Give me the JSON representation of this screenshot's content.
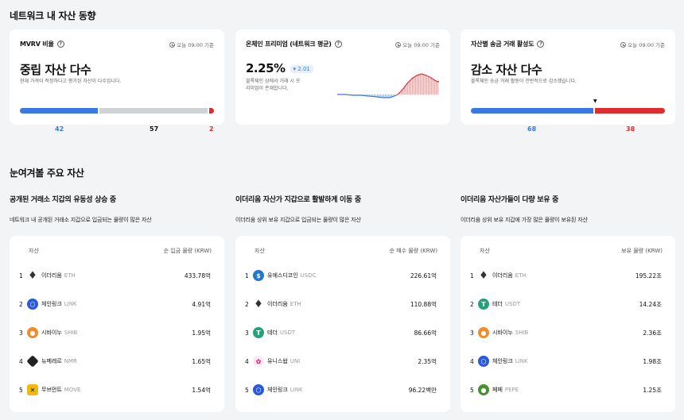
{
  "section1_title": "네트워크 내 자산 동향",
  "section2_title": "눈여겨볼 주요 자산",
  "metrics": {
    "mvrv": {
      "title": "MVRV 비율",
      "time": "오늘 09:00 기준",
      "value": "중립 자산 다수",
      "desc": "현재 가격이 적정하다고 평가된 자산이 다수입니다.",
      "bar_values": [
        "42",
        "57",
        "2"
      ]
    },
    "premium": {
      "title": "온체인 프리미엄 (네트워크 평균)",
      "time": "오늘 09:00 기준",
      "value": "2.25%",
      "delta": "▾ 2.01",
      "desc_line1": "블록체인 상에서 거래 시 프",
      "desc_line2": "리미엄이 존재합니다."
    },
    "transfer": {
      "title": "자산별 송금 거래 활성도",
      "time": "오늘 09:00 기준",
      "value": "감소 자산 다수",
      "desc": "블록체인 송금 거래 활동이 전반적으로 감소했습니다.",
      "bar_values": [
        "68",
        "38"
      ]
    }
  },
  "colors": {
    "blue": "#3a78e4",
    "grey": "#cfd2d6",
    "red": "#e02c2c"
  },
  "lists": [
    {
      "title": "공개된 거래소 지갑의 유동성 상승 중",
      "desc": "네트워크 내 공개된 거래소 지갑으로 입금되는 물량이 많은 자산",
      "col_asset": "자산",
      "col_value": "순 입금 물량 (KRW)",
      "rows": [
        {
          "rank": "1",
          "name": "이더리움",
          "symbol": "ETH",
          "value": "433.78억",
          "icon": "ethereum-icon"
        },
        {
          "rank": "2",
          "name": "체인링크",
          "symbol": "LINK",
          "value": "4.91억",
          "icon": "chainlink-icon"
        },
        {
          "rank": "3",
          "name": "시바이누",
          "symbol": "SHIB",
          "value": "1.95억",
          "icon": "shiba-inu-icon"
        },
        {
          "rank": "4",
          "name": "뉴메레르",
          "symbol": "NMR",
          "value": "1.65억",
          "icon": "numeraire-icon"
        },
        {
          "rank": "5",
          "name": "무브먼트",
          "symbol": "MOVE",
          "value": "1.54억",
          "icon": "movement-icon"
        }
      ]
    },
    {
      "title": "이더리움 자산가 지갑으로 활발하게 이동 중",
      "desc": "이더리움 상위 보유 지갑으로 입금되는 물량이 많은 자산",
      "col_asset": "자산",
      "col_value": "순 매수 물량 (KRW)",
      "rows": [
        {
          "rank": "1",
          "name": "유에스디코인",
          "symbol": "USDC",
          "value": "226.61억",
          "icon": "usdc-icon"
        },
        {
          "rank": "2",
          "name": "이더리움",
          "symbol": "ETH",
          "value": "110.88억",
          "icon": "ethereum-icon"
        },
        {
          "rank": "3",
          "name": "테더",
          "symbol": "USDT",
          "value": "86.66억",
          "icon": "tether-icon"
        },
        {
          "rank": "4",
          "name": "유니스왑",
          "symbol": "UNI",
          "value": "2.35억",
          "icon": "uniswap-icon"
        },
        {
          "rank": "5",
          "name": "체인링크",
          "symbol": "LINK",
          "value": "96.22백만",
          "icon": "chainlink-icon"
        }
      ]
    },
    {
      "title": "이더리움 자산가들이 다량 보유 중",
      "desc": "이더리움 상위 보유 지갑에 가장 많은 물량이 보유된 자산",
      "col_asset": "자산",
      "col_value": "보유 물량 (KRW)",
      "rows": [
        {
          "rank": "1",
          "name": "이더리움",
          "symbol": "ETH",
          "value": "195.22조",
          "icon": "ethereum-icon"
        },
        {
          "rank": "2",
          "name": "테더",
          "symbol": "USDT",
          "value": "14.24조",
          "icon": "tether-icon"
        },
        {
          "rank": "3",
          "name": "시바이누",
          "symbol": "SHIB",
          "value": "2.36조",
          "icon": "shiba-inu-icon"
        },
        {
          "rank": "4",
          "name": "체인링크",
          "symbol": "LINK",
          "value": "1.98조",
          "icon": "chainlink-icon"
        },
        {
          "rank": "5",
          "name": "페페",
          "symbol": "PEPE",
          "value": "1.25조",
          "icon": "pepe-icon"
        }
      ]
    }
  ]
}
